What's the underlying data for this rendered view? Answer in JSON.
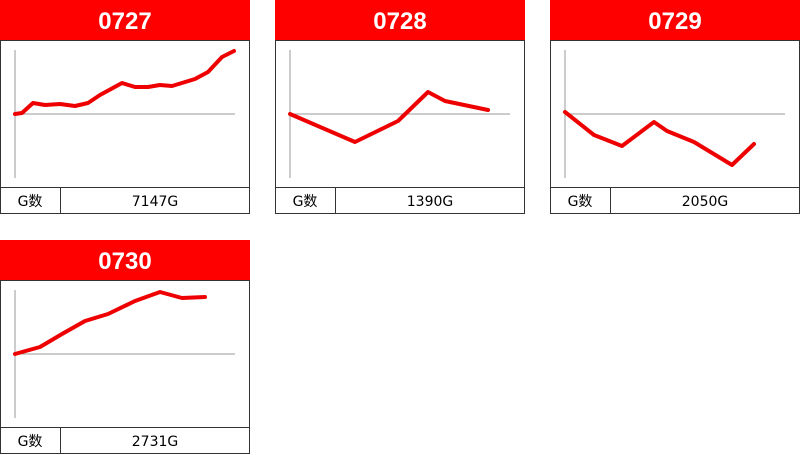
{
  "chart_data": [
    {
      "type": "line",
      "title": "0727",
      "footer_label": "G数",
      "footer_value": "7147G",
      "color": "#ee0000",
      "x": [
        0,
        7,
        18,
        30,
        45,
        60,
        73,
        85,
        107,
        120,
        133,
        145,
        157,
        180,
        193,
        207,
        219
      ],
      "values": [
        0,
        1,
        11,
        9,
        10,
        8,
        11,
        19,
        31,
        27,
        27,
        29,
        28,
        35,
        42,
        57,
        63
      ],
      "xlim": [
        0,
        220
      ],
      "ylim": [
        -64,
        64
      ],
      "baseline": 0
    },
    {
      "type": "line",
      "title": "0728",
      "footer_label": "G数",
      "footer_value": "1390G",
      "color": "#ee0000",
      "x": [
        0,
        65,
        108,
        138,
        155,
        198
      ],
      "values": [
        0,
        -28,
        -7,
        22,
        13,
        4
      ],
      "xlim": [
        0,
        220
      ],
      "ylim": [
        -64,
        64
      ],
      "baseline": 0
    },
    {
      "type": "line",
      "title": "0729",
      "footer_label": "G数",
      "footer_value": "2050G",
      "color": "#ee0000",
      "x": [
        0,
        29,
        57,
        89,
        102,
        129,
        167,
        189
      ],
      "values": [
        2,
        -21,
        -32,
        -8,
        -17,
        -28,
        -51,
        -30
      ],
      "xlim": [
        0,
        220
      ],
      "ylim": [
        -64,
        64
      ],
      "baseline": 0
    },
    {
      "type": "line",
      "title": "0730",
      "footer_label": "G数",
      "footer_value": "2731G",
      "color": "#ee0000",
      "x": [
        0,
        7,
        25,
        47,
        70,
        93,
        120,
        145,
        167,
        190
      ],
      "values": [
        0,
        2,
        7,
        20,
        33,
        40,
        53,
        62,
        56,
        57
      ],
      "xlim": [
        0,
        220
      ],
      "ylim": [
        -64,
        64
      ],
      "baseline": 0
    }
  ]
}
